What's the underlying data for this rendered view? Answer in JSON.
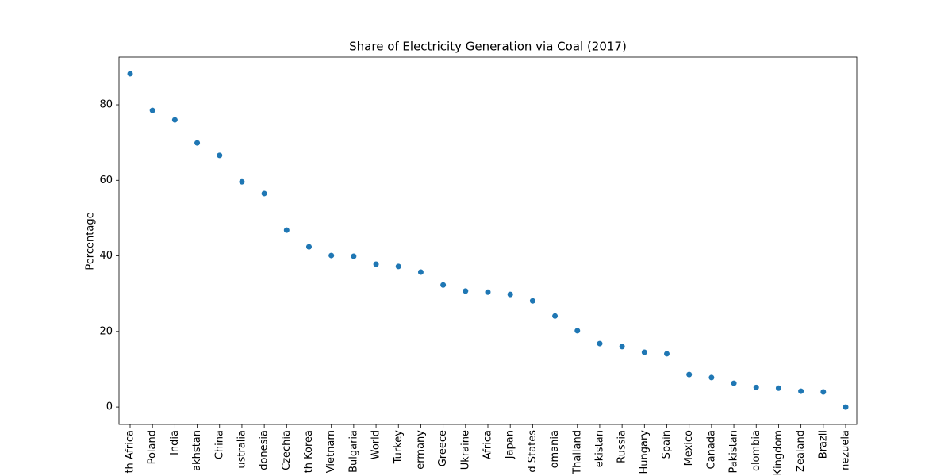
{
  "chart_data": {
    "type": "scatter",
    "title": "Share of Electricity Generation via Coal (2017)",
    "y_label": "Percentage",
    "categories": [
      "th Africa",
      "Poland",
      "India",
      "akhstan",
      "China",
      "ustralia",
      "donesia",
      "Czechia",
      "th Korea",
      "Vietnam",
      "Bulgaria",
      "World",
      "Turkey",
      "ermany",
      "Greece",
      "Ukraine",
      "Africa",
      "Japan",
      "d States",
      "omania",
      "Thailand",
      "ekistan",
      "Russia",
      "Hungary",
      "Spain",
      "Mexico",
      "Canada",
      "Pakistan",
      "olombia",
      "Kingdom",
      "Zealand",
      "Brazil",
      "nezuela"
    ],
    "values": [
      88.2,
      78.5,
      76.0,
      69.9,
      66.6,
      59.6,
      56.5,
      46.8,
      42.4,
      40.1,
      39.9,
      37.8,
      37.2,
      35.7,
      32.3,
      30.7,
      30.4,
      29.8,
      28.1,
      24.1,
      20.2,
      16.8,
      16.0,
      14.5,
      14.1,
      8.6,
      7.8,
      6.3,
      5.2,
      5.0,
      4.2,
      4.0,
      0
    ],
    "color": "#1f77b4",
    "ylim": [
      -4.6,
      92.6
    ],
    "yticks": [
      0,
      20,
      40,
      60,
      80
    ],
    "grid": false
  }
}
